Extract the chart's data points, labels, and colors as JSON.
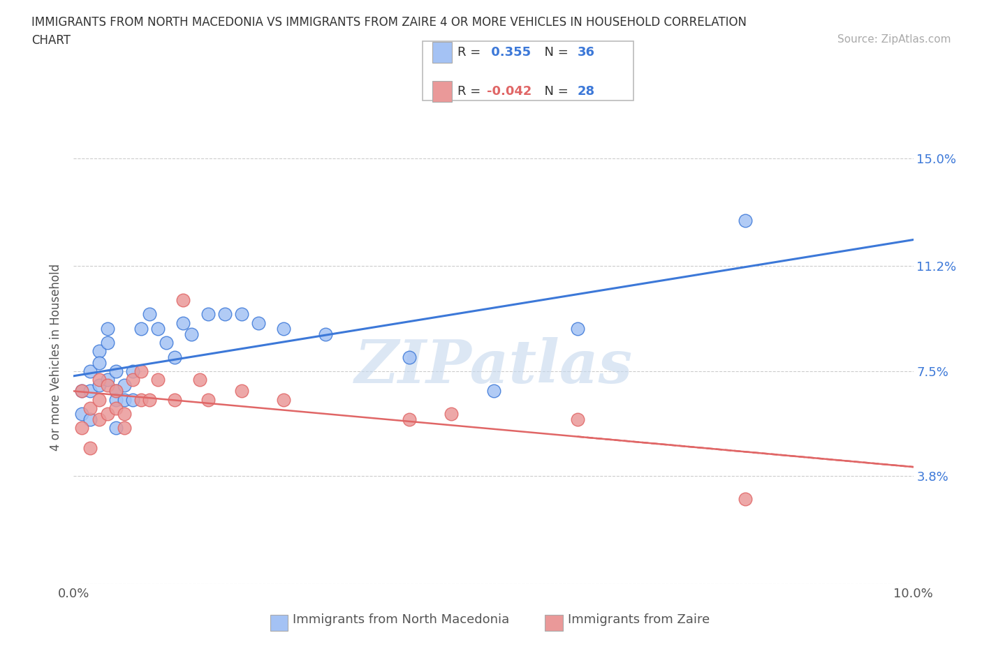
{
  "title_line1": "IMMIGRANTS FROM NORTH MACEDONIA VS IMMIGRANTS FROM ZAIRE 4 OR MORE VEHICLES IN HOUSEHOLD CORRELATION",
  "title_line2": "CHART",
  "source_text": "Source: ZipAtlas.com",
  "ylabel": "4 or more Vehicles in Household",
  "r1": 0.355,
  "n1": 36,
  "r2": -0.042,
  "n2": 28,
  "xlim": [
    0.0,
    0.1
  ],
  "ylim": [
    0.0,
    0.16
  ],
  "xticks": [
    0.0,
    0.02,
    0.04,
    0.06,
    0.08,
    0.1
  ],
  "xticklabels": [
    "0.0%",
    "",
    "",
    "",
    "",
    "10.0%"
  ],
  "ytick_positions": [
    0.0,
    0.038,
    0.075,
    0.112,
    0.15
  ],
  "yticklabels_right": [
    "",
    "3.8%",
    "7.5%",
    "11.2%",
    "15.0%"
  ],
  "color_blue": "#a4c2f4",
  "color_pink": "#ea9999",
  "color_line_blue": "#3c78d8",
  "color_line_pink": "#e06666",
  "legend1_label": "Immigrants from North Macedonia",
  "legend2_label": "Immigrants from Zaire",
  "blue_scatter_x": [
    0.001,
    0.001,
    0.002,
    0.002,
    0.002,
    0.003,
    0.003,
    0.003,
    0.004,
    0.004,
    0.004,
    0.005,
    0.005,
    0.005,
    0.005,
    0.006,
    0.006,
    0.007,
    0.007,
    0.008,
    0.009,
    0.01,
    0.011,
    0.012,
    0.013,
    0.014,
    0.016,
    0.018,
    0.02,
    0.022,
    0.025,
    0.03,
    0.04,
    0.05,
    0.06,
    0.08
  ],
  "blue_scatter_y": [
    0.068,
    0.06,
    0.075,
    0.068,
    0.058,
    0.082,
    0.078,
    0.07,
    0.09,
    0.085,
    0.072,
    0.075,
    0.068,
    0.065,
    0.055,
    0.07,
    0.065,
    0.075,
    0.065,
    0.09,
    0.095,
    0.09,
    0.085,
    0.08,
    0.092,
    0.088,
    0.095,
    0.095,
    0.095,
    0.092,
    0.09,
    0.088,
    0.08,
    0.068,
    0.09,
    0.128
  ],
  "pink_scatter_x": [
    0.001,
    0.001,
    0.002,
    0.002,
    0.003,
    0.003,
    0.003,
    0.004,
    0.004,
    0.005,
    0.005,
    0.006,
    0.006,
    0.007,
    0.008,
    0.008,
    0.009,
    0.01,
    0.012,
    0.013,
    0.015,
    0.016,
    0.02,
    0.025,
    0.04,
    0.045,
    0.06,
    0.08
  ],
  "pink_scatter_y": [
    0.068,
    0.055,
    0.062,
    0.048,
    0.072,
    0.065,
    0.058,
    0.07,
    0.06,
    0.068,
    0.062,
    0.06,
    0.055,
    0.072,
    0.075,
    0.065,
    0.065,
    0.072,
    0.065,
    0.1,
    0.072,
    0.065,
    0.068,
    0.065,
    0.058,
    0.06,
    0.058,
    0.03
  ]
}
